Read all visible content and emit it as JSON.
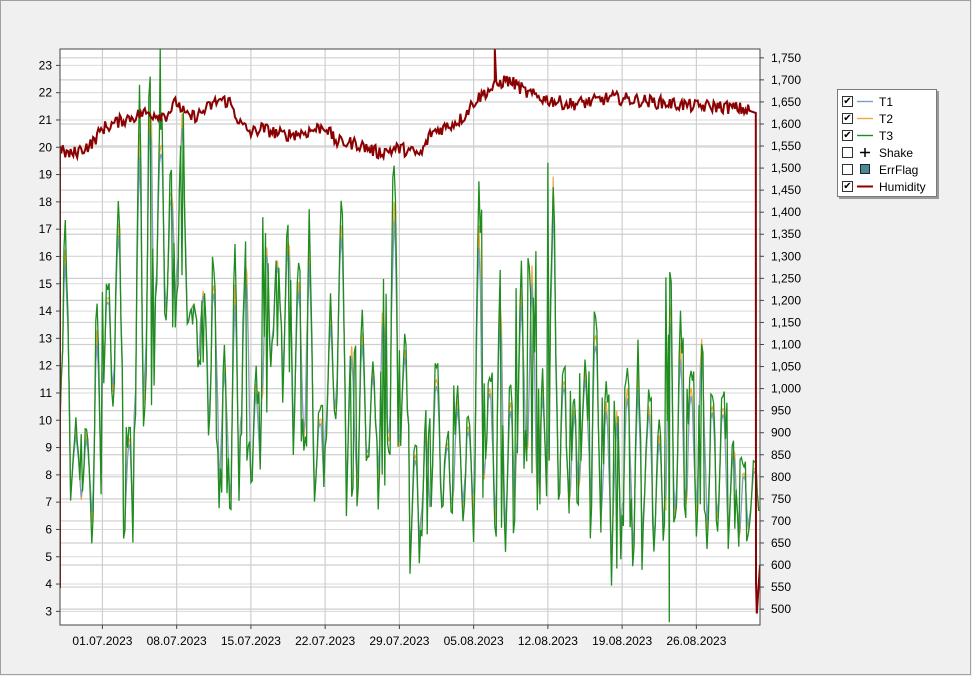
{
  "chart_data": {
    "type": "line",
    "title": "",
    "xlabel": "",
    "ylabel": "",
    "y_left_lim": [
      2.5,
      23.6
    ],
    "y_right_lim": [
      464,
      1770
    ],
    "x_range": [
      "2023-06-27",
      "2023-09-01"
    ],
    "grid": true,
    "legend_position": "right",
    "x_tick_labels": [
      "01.07.2023",
      "08.07.2023",
      "15.07.2023",
      "22.07.2023",
      "29.07.2023",
      "05.08.2023",
      "12.08.2023",
      "19.08.2023",
      "26.08.2023"
    ],
    "y_left_ticks": [
      3,
      4,
      5,
      6,
      7,
      8,
      9,
      10,
      11,
      12,
      13,
      14,
      15,
      16,
      17,
      18,
      19,
      20,
      21,
      22,
      23
    ],
    "y_right_tick_labels": [
      "500",
      "550",
      "600",
      "650",
      "700",
      "750",
      "800",
      "850",
      "900",
      "950",
      "1,000",
      "1,050",
      "1,100",
      "1,150",
      "1,200",
      "1,250",
      "1,300",
      "1,350",
      "1,400",
      "1,450",
      "1,500",
      "1,550",
      "1,600",
      "1,650",
      "1,700",
      "1,750"
    ],
    "temperature_daily": {
      "x": [
        "2023-06-27",
        "2023-06-28",
        "2023-06-29",
        "2023-06-30",
        "2023-07-01",
        "2023-07-02",
        "2023-07-03",
        "2023-07-04",
        "2023-07-05",
        "2023-07-06",
        "2023-07-07",
        "2023-07-08",
        "2023-07-09",
        "2023-07-10",
        "2023-07-11",
        "2023-07-12",
        "2023-07-13",
        "2023-07-14",
        "2023-07-15",
        "2023-07-16",
        "2023-07-17",
        "2023-07-18",
        "2023-07-19",
        "2023-07-20",
        "2023-07-21",
        "2023-07-22",
        "2023-07-23",
        "2023-07-24",
        "2023-07-25",
        "2023-07-26",
        "2023-07-27",
        "2023-07-28",
        "2023-07-29",
        "2023-07-30",
        "2023-07-31",
        "2023-08-01",
        "2023-08-02",
        "2023-08-03",
        "2023-08-04",
        "2023-08-05",
        "2023-08-06",
        "2023-08-07",
        "2023-08-08",
        "2023-08-09",
        "2023-08-10",
        "2023-08-11",
        "2023-08-12",
        "2023-08-13",
        "2023-08-14",
        "2023-08-15",
        "2023-08-16",
        "2023-08-17",
        "2023-08-18",
        "2023-08-19",
        "2023-08-20",
        "2023-08-21",
        "2023-08-22",
        "2023-08-23",
        "2023-08-24",
        "2023-08-25",
        "2023-08-26",
        "2023-08-27",
        "2023-08-28",
        "2023-08-29",
        "2023-08-30",
        "2023-08-31"
      ],
      "min": [
        9.5,
        7.2,
        6.8,
        5.6,
        11,
        10.2,
        5.3,
        7.8,
        10,
        13.5,
        13.2,
        14.6,
        13.5,
        11.8,
        8.8,
        7.2,
        5.6,
        8.4,
        7.2,
        9.8,
        12.6,
        11.2,
        9,
        8.2,
        6.9,
        9,
        9.5,
        7.2,
        7.4,
        8.3,
        7.6,
        8,
        8.7,
        4.6,
        5.7,
        6.6,
        6.5,
        6.5,
        6.7,
        6,
        7.6,
        5.6,
        5.5,
        7.8,
        7.6,
        6.8,
        7.4,
        6.4,
        6.7,
        7.6,
        6.2,
        5.6,
        4.5,
        6,
        4.3,
        6,
        5,
        5.5,
        6,
        6.5,
        6.4,
        5.8,
        6,
        5.7,
        5.4,
        6.2
      ],
      "max": [
        16.8,
        9.8,
        9.8,
        14.5,
        15.3,
        18.4,
        10.2,
        22.2,
        23.4,
        21.6,
        19.4,
        21.8,
        14.3,
        15.2,
        16.3,
        12.8,
        15.8,
        17,
        11.7,
        17.9,
        16.3,
        17.5,
        16.2,
        16.9,
        10.7,
        14.3,
        18.5,
        13.2,
        13.9,
        12.5,
        15.3,
        19.4,
        13,
        9.7,
        10.1,
        12.6,
        9.7,
        11.3,
        10.3,
        18.4,
        11.9,
        15.4,
        11.5,
        15.3,
        16.3,
        11.6,
        19.7,
        12.6,
        11.1,
        12.4,
        14.5,
        11.3,
        10.9,
        11.8,
        12.3,
        11.2,
        10.1,
        15.5,
        13.2,
        11.9,
        13.4,
        11.6,
        11.4,
        9.5,
        8.7,
        8.6
      ],
      "T3_extremes": [
        {
          "x": "2023-07-06",
          "y": 23.6
        },
        {
          "x": "2023-08-23",
          "y": 2.6
        }
      ]
    },
    "humidity": {
      "x": [
        "2023-06-27",
        "2023-06-28",
        "2023-06-30",
        "2023-07-01",
        "2023-07-03",
        "2023-07-05",
        "2023-07-07",
        "2023-07-08",
        "2023-07-09",
        "2023-07-10",
        "2023-07-12",
        "2023-07-13",
        "2023-07-14",
        "2023-07-15",
        "2023-07-16",
        "2023-07-18",
        "2023-07-20",
        "2023-07-22",
        "2023-07-23",
        "2023-07-25",
        "2023-07-27",
        "2023-07-29",
        "2023-07-31",
        "2023-08-01",
        "2023-08-02",
        "2023-08-03",
        "2023-08-04",
        "2023-08-05",
        "2023-08-06",
        "2023-08-08",
        "2023-08-09",
        "2023-08-10",
        "2023-08-12",
        "2023-08-14",
        "2023-08-16",
        "2023-08-18",
        "2023-08-20",
        "2023-08-22",
        "2023-08-24",
        "2023-08-26",
        "2023-08-28",
        "2023-08-30",
        "2023-08-31",
        "2023-09-01"
      ],
      "values": [
        1540,
        1530,
        1555,
        1590,
        1610,
        1625,
        1620,
        1650,
        1615,
        1620,
        1655,
        1650,
        1600,
        1580,
        1590,
        1575,
        1580,
        1595,
        1560,
        1555,
        1535,
        1545,
        1530,
        1580,
        1590,
        1600,
        1615,
        1650,
        1670,
        1700,
        1690,
        1670,
        1655,
        1645,
        1650,
        1660,
        1655,
        1650,
        1645,
        1640,
        1640,
        1635,
        1630,
        490
      ],
      "extremes": [
        {
          "x": "2023-06-27",
          "y": 550
        },
        {
          "x": "2023-08-07",
          "y": 1770
        }
      ]
    },
    "series": [
      {
        "name": "T1",
        "axis": "left",
        "color": "#7b9ec9",
        "visible": true
      },
      {
        "name": "T2",
        "axis": "left",
        "color": "#f4a640",
        "visible": true
      },
      {
        "name": "T3",
        "axis": "left",
        "color": "#1f8c1f",
        "visible": true
      },
      {
        "name": "Shake",
        "axis": "right",
        "color": "#000000",
        "visible": false,
        "marker": "cross"
      },
      {
        "name": "ErrFlag",
        "axis": "right",
        "color": "#4a8a96",
        "visible": false,
        "marker": "square"
      },
      {
        "name": "Humidity",
        "axis": "right",
        "color": "#8b0000",
        "visible": true
      }
    ]
  }
}
